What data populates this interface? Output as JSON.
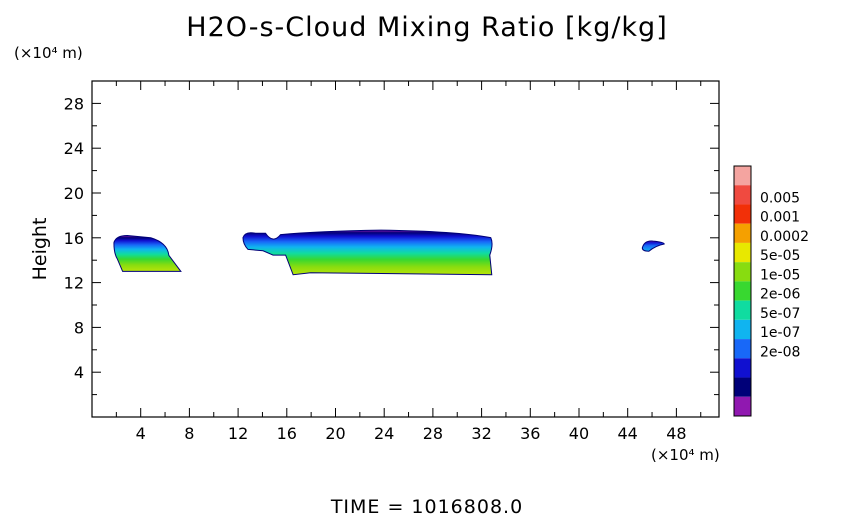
{
  "chart_data": {
    "type": "heatmap",
    "title": "H2O-s-Cloud Mixing Ratio [kg/kg]",
    "xlabel": "",
    "ylabel": "Height",
    "x_unit": "(×10⁴ m)",
    "y_unit": "(×10⁴ m)",
    "xlim": [
      0,
      51.5
    ],
    "ylim": [
      0,
      30
    ],
    "x_ticks": [
      4,
      8,
      12,
      16,
      20,
      24,
      28,
      32,
      36,
      40,
      44,
      48
    ],
    "y_ticks": [
      4,
      8,
      12,
      16,
      20,
      24,
      28
    ],
    "colorbar": {
      "levels": [
        "0.005",
        "0.001",
        "0.0002",
        "5e-05",
        "1e-05",
        "2e-06",
        "5e-07",
        "1e-07",
        "2e-08"
      ],
      "colors": [
        "#f4a4a0",
        "#f04a40",
        "#f23008",
        "#f5a000",
        "#e8e800",
        "#88dc10",
        "#38d830",
        "#10dca0",
        "#10b4f0",
        "#1868f8",
        "#1010d0",
        "#000078",
        "#9018b0"
      ]
    },
    "cloud_regions": [
      {
        "x_start": 1.8,
        "x_end": 7.3,
        "z_bottom": 13.0,
        "z_top": 16.2
      },
      {
        "x_start": 12.4,
        "x_end": 33.0,
        "z_bottom": 12.7,
        "z_top": 16.6
      },
      {
        "x_start": 45.2,
        "x_end": 47.0,
        "z_bottom": 14.8,
        "z_top": 15.8
      }
    ]
  },
  "footer": {
    "time_label": "TIME = 1016808.0"
  }
}
